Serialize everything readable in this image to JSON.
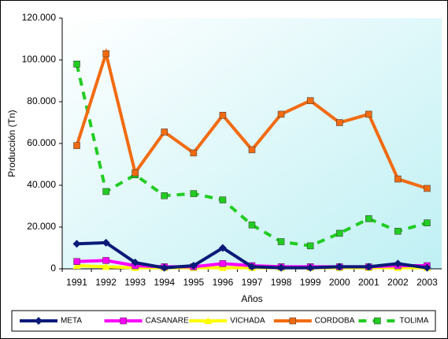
{
  "chart_data": {
    "type": "line",
    "x_label": "Años",
    "y_label": "Producción (Tn)",
    "categories": [
      "1991",
      "1992",
      "1993",
      "1994",
      "1995",
      "1996",
      "1997",
      "1998",
      "1999",
      "2000",
      "2001",
      "2002",
      "2003"
    ],
    "ylim": [
      0,
      120000
    ],
    "yticks": [
      0,
      {
        "value": 20000,
        "label": "20.000"
      },
      {
        "value": 40000,
        "label": "40.000"
      },
      {
        "value": 60000,
        "label": "60.000"
      },
      {
        "value": 80000,
        "label": "80.000"
      },
      {
        "value": 100000,
        "label": "100.000"
      },
      {
        "value": 120000,
        "label": "120.000"
      }
    ],
    "grid": false,
    "legend": "bottom",
    "series": [
      {
        "name": "META",
        "color": "#0a1a78",
        "marker": "diamond",
        "dashed": false,
        "values": [
          12000,
          12500,
          3000,
          500,
          1500,
          10000,
          1000,
          500,
          500,
          1000,
          1000,
          2500,
          500
        ]
      },
      {
        "name": "CASANARE",
        "color": "#ff00ff",
        "marker": "square",
        "dashed": false,
        "values": [
          3500,
          4000,
          1500,
          1000,
          1000,
          2500,
          1500,
          1000,
          1000,
          1000,
          1000,
          1500,
          1500
        ]
      },
      {
        "name": "VICHADA",
        "color": "#ffff00",
        "marker": "triangle",
        "dashed": false,
        "values": [
          1500,
          1000,
          500,
          500,
          500,
          500,
          500,
          500,
          500,
          500,
          500,
          500,
          500
        ]
      },
      {
        "name": "CORDOBA",
        "color": "#f26b11",
        "marker": "square",
        "dashed": false,
        "values": [
          59000,
          103000,
          46000,
          65500,
          55500,
          73500,
          57000,
          74000,
          80500,
          70000,
          74000,
          43000,
          38500
        ]
      },
      {
        "name": "TOLIMA",
        "color": "#22cc22",
        "marker": "square",
        "dashed": true,
        "values": [
          98000,
          37000,
          45000,
          35000,
          36000,
          33000,
          21000,
          13000,
          11000,
          17000,
          24000,
          18000,
          22000
        ]
      }
    ]
  }
}
